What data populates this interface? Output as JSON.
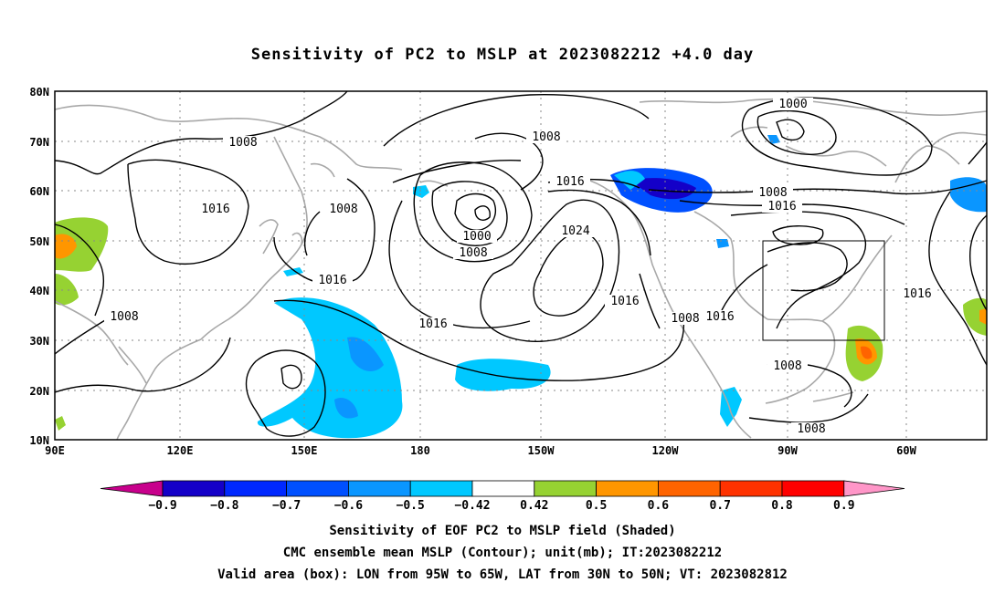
{
  "title": "Sensitivity of PC2 to MSLP at 2023082212 +4.0 day",
  "lat_labels": [
    "80N",
    "70N",
    "60N",
    "50N",
    "40N",
    "30N",
    "20N",
    "10N"
  ],
  "lon_labels": [
    "90E",
    "120E",
    "150E",
    "180",
    "150W",
    "120W",
    "90W",
    "60W"
  ],
  "contour_labels": [
    "1008",
    "1008",
    "1016",
    "1008",
    "1016",
    "1008",
    "1016",
    "1000",
    "1008",
    "1016",
    "1024",
    "1000",
    "1008",
    "1016",
    "1016",
    "1016",
    "1008",
    "1016",
    "1008",
    "1008"
  ],
  "colorbar": {
    "ticks": [
      "−0.9",
      "−0.8",
      "−0.7",
      "−0.6",
      "−0.5",
      "−0.42",
      "0.42",
      "0.5",
      "0.6",
      "0.7",
      "0.8",
      "0.9"
    ],
    "colors": [
      "#c8008c",
      "#1400c8",
      "#0028ff",
      "#0050ff",
      "#0a96ff",
      "#00c8ff",
      "#ffffff",
      "#96d232",
      "#ff9600",
      "#ff6400",
      "#ff3200",
      "#ff0000",
      "#ff96c8"
    ]
  },
  "footer": {
    "line1": "Sensitivity of EOF PC2 to MSLP field (Shaded)",
    "line2": "CMC ensemble mean MSLP (Contour); unit(mb); IT:2023082212",
    "line3": "Valid area (box): LON from 95W to 65W, LAT from 30N to 50N; VT: 2023082812"
  }
}
